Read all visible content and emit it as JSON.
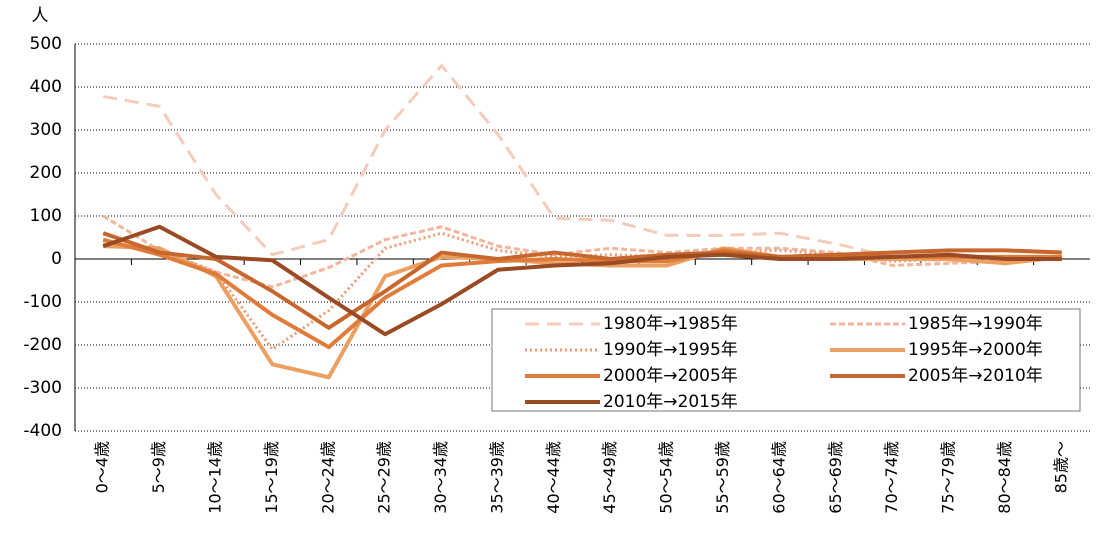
{
  "chart_data": {
    "type": "line",
    "ylabel": "人",
    "categories": [
      "0〜4歳",
      "5〜9歳",
      "10〜14歳",
      "15〜19歳",
      "20〜24歳",
      "25〜29歳",
      "30〜34歳",
      "35〜39歳",
      "40〜44歳",
      "45〜49歳",
      "50〜54歳",
      "55〜59歳",
      "60〜64歳",
      "65〜69歳",
      "70〜74歳",
      "75〜79歳",
      "80〜84歳",
      "85歳〜"
    ],
    "series": [
      {
        "name": "1980年→1985年",
        "color": "#f5cbbb",
        "dash": "long-dash",
        "values": [
          378,
          355,
          150,
          10,
          45,
          300,
          450,
          290,
          95,
          90,
          55,
          55,
          60,
          35,
          5,
          -5,
          -5,
          0
        ]
      },
      {
        "name": "1985年→1990年",
        "color": "#f1b69d",
        "dash": "dash",
        "values": [
          100,
          20,
          -30,
          -65,
          -20,
          45,
          75,
          30,
          10,
          25,
          15,
          25,
          25,
          15,
          -15,
          -10,
          -5,
          5
        ]
      },
      {
        "name": "1990年→1995年",
        "color": "#eb9a74",
        "dash": "dot",
        "values": [
          35,
          20,
          -30,
          -210,
          -120,
          25,
          60,
          20,
          5,
          10,
          5,
          15,
          20,
          10,
          -5,
          0,
          0,
          5
        ]
      },
      {
        "name": "1995年→2000年",
        "color": "#eba062",
        "dash": "solid",
        "values": [
          30,
          25,
          -40,
          -245,
          -275,
          -40,
          5,
          0,
          -10,
          -15,
          -15,
          25,
          5,
          0,
          0,
          0,
          -10,
          5
        ]
      },
      {
        "name": "2000年→2005年",
        "color": "#e07c3a",
        "dash": "solid",
        "values": [
          45,
          10,
          -35,
          -130,
          -205,
          -90,
          -15,
          -5,
          0,
          -5,
          -5,
          20,
          5,
          5,
          5,
          5,
          5,
          5
        ]
      },
      {
        "name": "2005年→2010年",
        "color": "#c8672d",
        "dash": "solid",
        "values": [
          60,
          15,
          0,
          -75,
          -160,
          -75,
          15,
          0,
          15,
          0,
          10,
          15,
          5,
          10,
          15,
          20,
          20,
          15
        ]
      },
      {
        "name": "2010年→2015年",
        "color": "#9a4b23",
        "dash": "solid",
        "values": [
          30,
          75,
          5,
          -3,
          -90,
          -175,
          -105,
          -25,
          -15,
          -10,
          5,
          10,
          0,
          0,
          5,
          10,
          0,
          0
        ]
      }
    ],
    "ylim": [
      -400,
      500
    ],
    "yticks": [
      -400,
      -300,
      -200,
      -100,
      0,
      100,
      200,
      300,
      400,
      500
    ],
    "grid": true,
    "legend": "lower right"
  }
}
